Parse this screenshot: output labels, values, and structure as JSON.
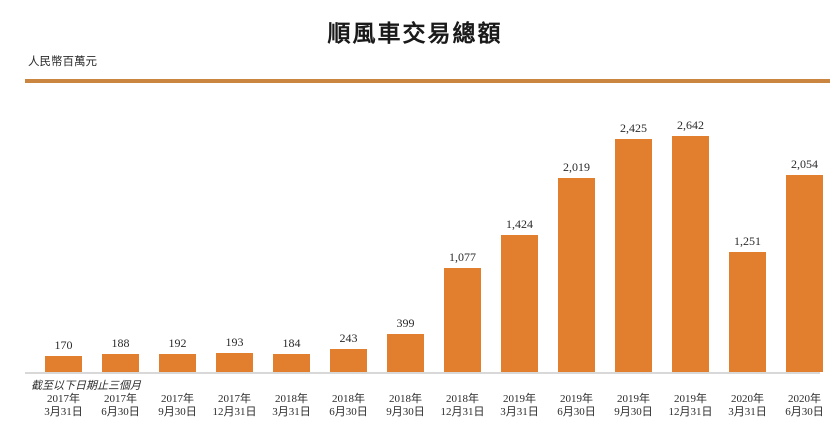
{
  "page": {
    "background": "#FFFFFF"
  },
  "colors": {
    "bar": "#E17F2E",
    "divider": "#CA8540",
    "baseline": "#D8D8D8",
    "title_text": "#1A1A1A",
    "body_text": "#2B2B2B"
  },
  "chart_data": {
    "type": "bar",
    "title": "順風車交易總額",
    "ylabel": "人民幣百萬元",
    "xlabel": "",
    "axis_note": "截至以下日期止三個月",
    "categories": [
      {
        "line1": "2017年",
        "line2": "3月31日"
      },
      {
        "line1": "2017年",
        "line2": "6月30日"
      },
      {
        "line1": "2017年",
        "line2": "9月30日"
      },
      {
        "line1": "2017年",
        "line2": "12月31日"
      },
      {
        "line1": "2018年",
        "line2": "3月31日"
      },
      {
        "line1": "2018年",
        "line2": "6月30日"
      },
      {
        "line1": "2018年",
        "line2": "9月30日"
      },
      {
        "line1": "2018年",
        "line2": "12月31日"
      },
      {
        "line1": "2019年",
        "line2": "3月31日"
      },
      {
        "line1": "2019年",
        "line2": "6月30日"
      },
      {
        "line1": "2019年",
        "line2": "9月30日"
      },
      {
        "line1": "2019年",
        "line2": "12月31日"
      },
      {
        "line1": "2020年",
        "line2": "3月31日"
      },
      {
        "line1": "2020年",
        "line2": "6月30日"
      }
    ],
    "values": [
      170,
      188,
      192,
      193,
      184,
      243,
      399,
      1077,
      1424,
      2019,
      2425,
      2642,
      1251,
      2054
    ],
    "value_labels": [
      "170",
      "188",
      "192",
      "193",
      "184",
      "243",
      "399",
      "1,077",
      "1,424",
      "2,019",
      "2,425",
      "2,642",
      "1,251",
      "2,054"
    ],
    "ylim": [
      0,
      2642
    ],
    "grid": false,
    "legend": "none",
    "bar_color": "#E17F2E"
  }
}
